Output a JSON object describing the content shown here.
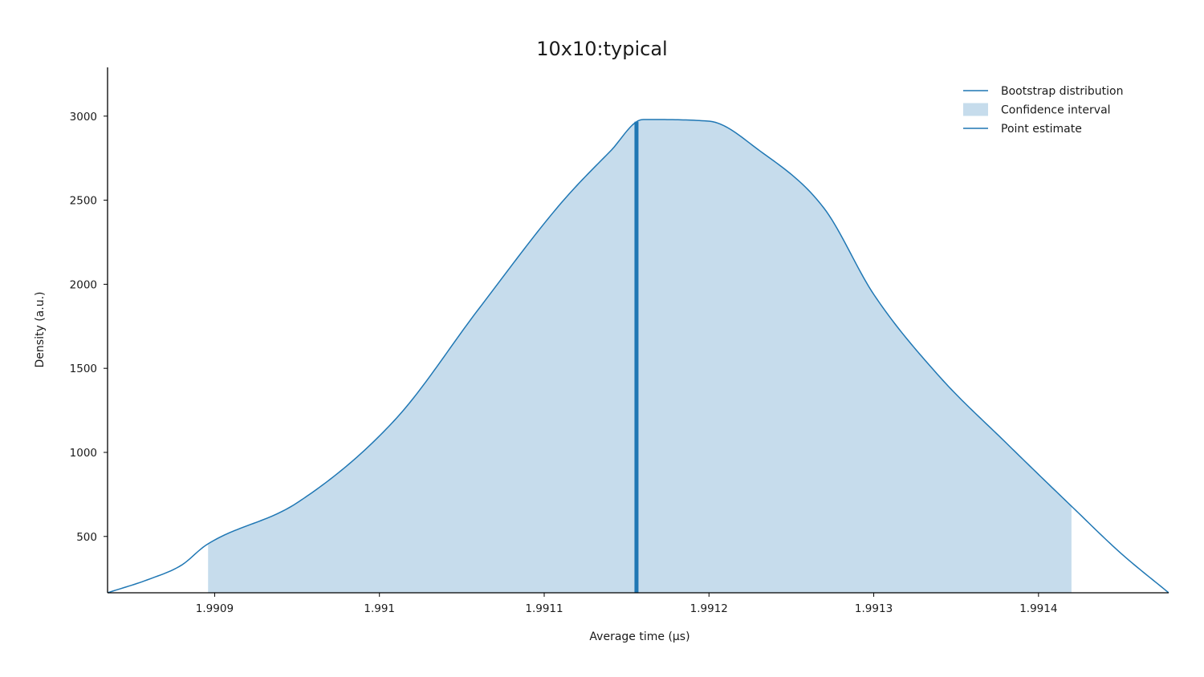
{
  "chart_data": {
    "type": "area",
    "title": "10x10:typical",
    "xlabel": "Average time (µs)",
    "ylabel": "Density (a.u.)",
    "xlim": [
      1.990835,
      1.991479
    ],
    "ylim": [
      165,
      3290
    ],
    "x_ticks": [
      "1.9909",
      "1.991",
      "1.9911",
      "1.9912",
      "1.9913",
      "1.9914"
    ],
    "x_tick_values": [
      1.9909,
      1.991,
      1.9911,
      1.9912,
      1.9913,
      1.9914
    ],
    "y_ticks": [
      "500",
      "1000",
      "1500",
      "2000",
      "2500",
      "3000"
    ],
    "y_tick_values": [
      500,
      1000,
      1500,
      2000,
      2500,
      3000
    ],
    "grid": false,
    "legend_position": "top-right",
    "colors": {
      "line": "#1f77b4",
      "fill": "#c6dcec",
      "axis": "#000000"
    },
    "series": [
      {
        "name": "Bootstrap distribution",
        "x": [
          1.990835,
          1.99086,
          1.99088,
          1.990895,
          1.99095,
          1.99101,
          1.99106,
          1.99111,
          1.99114,
          1.99116,
          1.9912,
          1.99123,
          1.99127,
          1.9913,
          1.99134,
          1.99138,
          1.99142,
          1.99145,
          1.991479
        ],
        "y": [
          165,
          245,
          330,
          450,
          700,
          1200,
          1850,
          2480,
          2790,
          2980,
          2970,
          2800,
          2450,
          1940,
          1450,
          1060,
          680,
          400,
          165
        ]
      },
      {
        "name": "Confidence interval",
        "lower": 1.990896,
        "upper": 1.99142
      },
      {
        "name": "Point estimate",
        "x": 1.991156
      }
    ]
  }
}
